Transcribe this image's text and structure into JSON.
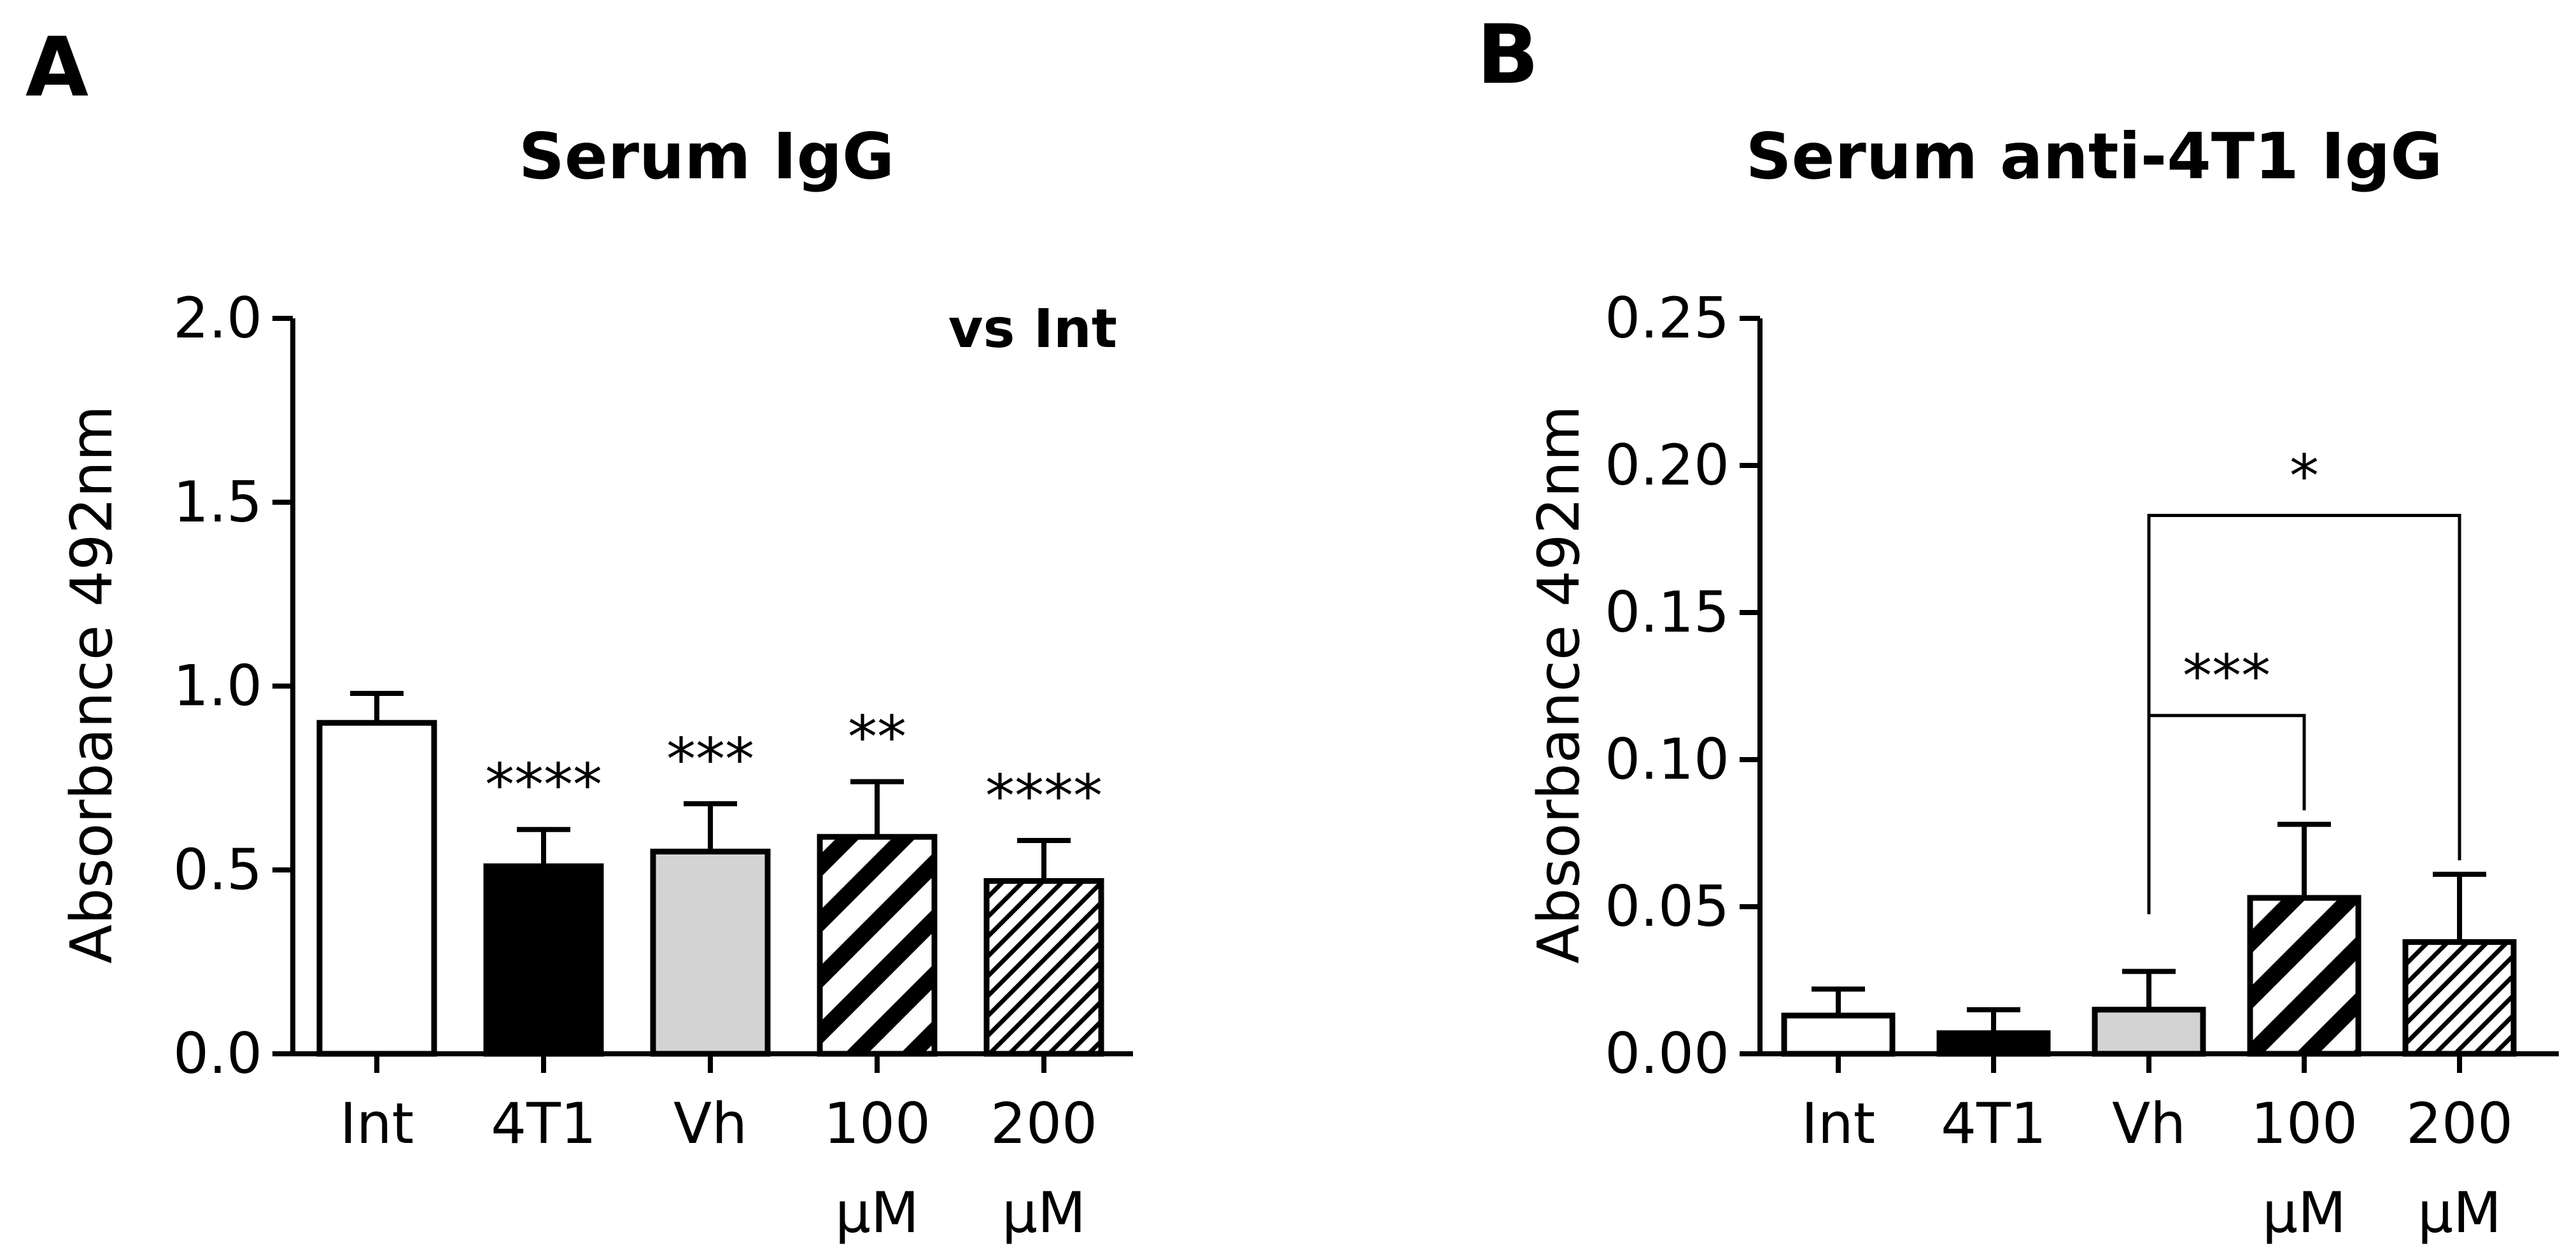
{
  "panels": [
    {
      "letter": "A",
      "title": "Serum IgG",
      "annotation": "vs Int"
    },
    {
      "letter": "B",
      "title": "Serum anti-4T1 IgG",
      "annotation": ""
    }
  ],
  "colors": {
    "int_fill": "#ffffff",
    "t4t1_fill": "#000000",
    "vh_fill": "#d3d3d3",
    "stroke": "#000000"
  },
  "chart_data": [
    {
      "type": "bar",
      "title": "Serum IgG",
      "ylabel": "Absorbance 492nm",
      "xlabel": "",
      "ylim": [
        0,
        2.0
      ],
      "yticks": [
        "0.0",
        "0.5",
        "1.0",
        "1.5",
        "2.0"
      ],
      "ytick_values": [
        0,
        0.5,
        1.0,
        1.5,
        2.0
      ],
      "categories": [
        {
          "line1": "Int",
          "line2": ""
        },
        {
          "line1": "4T1",
          "line2": ""
        },
        {
          "line1": "Vh",
          "line2": ""
        },
        {
          "line1": "100",
          "line2": "μM"
        },
        {
          "line1": "200",
          "line2": "μM"
        }
      ],
      "values": [
        0.9,
        0.51,
        0.55,
        0.59,
        0.47
      ],
      "errors": [
        0.08,
        0.1,
        0.13,
        0.15,
        0.11
      ],
      "fills": [
        "white",
        "black",
        "grey",
        "hatch-bold",
        "hatch-fine"
      ],
      "significance": [
        "",
        "****",
        "***",
        "**",
        "****"
      ],
      "annotation": "vs Int"
    },
    {
      "type": "bar",
      "title": "Serum anti-4T1 IgG",
      "ylabel": "Absorbance 492nm",
      "xlabel": "",
      "ylim": [
        0,
        0.25
      ],
      "yticks": [
        "0.00",
        "0.05",
        "0.10",
        "0.15",
        "0.20",
        "0.25"
      ],
      "ytick_values": [
        0,
        0.05,
        0.1,
        0.15,
        0.2,
        0.25
      ],
      "categories": [
        {
          "line1": "Int",
          "line2": ""
        },
        {
          "line1": "4T1",
          "line2": ""
        },
        {
          "line1": "Vh",
          "line2": ""
        },
        {
          "line1": "100",
          "line2": "μM"
        },
        {
          "line1": "200",
          "line2": "μM"
        }
      ],
      "values": [
        0.013,
        0.007,
        0.015,
        0.053,
        0.038
      ],
      "errors": [
        0.009,
        0.008,
        0.013,
        0.025,
        0.023
      ],
      "fills": [
        "white",
        "black",
        "grey",
        "hatch-bold",
        "hatch-fine"
      ],
      "brackets": [
        {
          "from": 2,
          "to": 3,
          "label": "***",
          "y": 0.115
        },
        {
          "from": 2,
          "to": 4,
          "label": "*",
          "y": 0.183
        }
      ]
    }
  ]
}
